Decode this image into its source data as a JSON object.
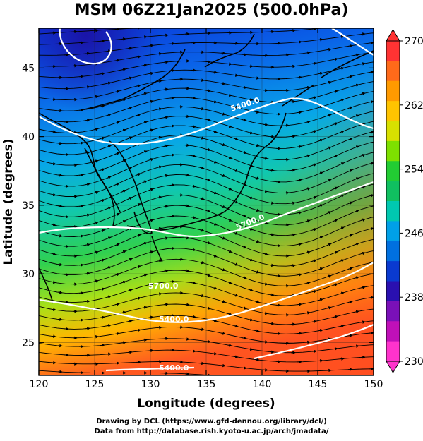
{
  "title": "MSM 06Z21Jan2025 (500.0hPa)",
  "x_axis": {
    "label": "Longitude (degrees)",
    "ticks": [
      "120",
      "125",
      "130",
      "135",
      "140",
      "145",
      "150"
    ],
    "range": [
      120,
      150
    ]
  },
  "y_axis": {
    "label": "Latitude (degrees)",
    "ticks": [
      "25",
      "30",
      "35",
      "40",
      "45"
    ],
    "range": [
      22.6,
      47.9
    ]
  },
  "colorbar": {
    "min": 230,
    "max": 270,
    "tick_labels": [
      "270",
      "262",
      "254",
      "246",
      "238",
      "230"
    ],
    "colors": [
      "#ff3333",
      "#ff6a1a",
      "#ff9a00",
      "#ffc400",
      "#d8e000",
      "#7ee000",
      "#22cc33",
      "#10c060",
      "#00c8b0",
      "#00a0e8",
      "#0070e0",
      "#0a3ad0",
      "#2a10b0",
      "#7a10b8",
      "#c010b8",
      "#ff33cc"
    ]
  },
  "contour_labels": [
    "5400.0",
    "5700.0",
    "5700.0",
    "5400.0",
    "5400.0",
    "5500.0"
  ],
  "credits": {
    "line1": "Drawing by DCL (https://www.gfd-dennou.org/library/dcl/)",
    "line2": "Data from http://database.rish.kyoto-u.ac.jp/arch/jmadata/"
  }
}
